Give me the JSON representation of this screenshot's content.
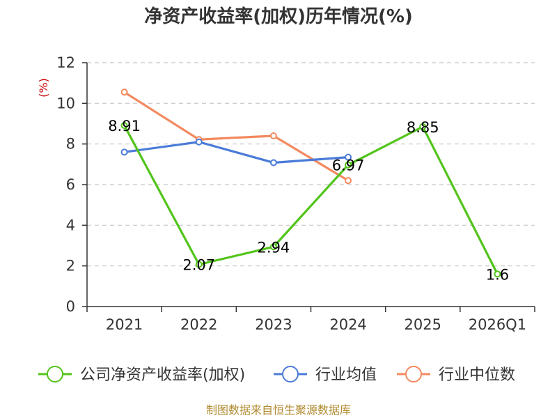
{
  "chart_data": {
    "type": "line",
    "title": "净资产收益率(加权)历年情况(%)",
    "ylabel": "(%)",
    "xlabel": "",
    "ylim": [
      0,
      12
    ],
    "yticks": [
      0,
      2,
      4,
      6,
      8,
      10,
      12
    ],
    "grid": true,
    "legend_position": "bottom",
    "categories": [
      "2021",
      "2022",
      "2023",
      "2024",
      "2025",
      "2026Q1"
    ],
    "series": [
      {
        "name": "公司净资产收益率(加权)",
        "color": "#52c41a",
        "values": [
          8.91,
          2.07,
          2.94,
          6.97,
          8.85,
          1.6
        ],
        "labels": [
          "8.91",
          "2.07",
          "2.94",
          "6.97",
          "8.85",
          "1.6"
        ]
      },
      {
        "name": "行业均值",
        "color": "#4a7bd8",
        "values": [
          7.6,
          8.1,
          7.08,
          7.35,
          null,
          null
        ]
      },
      {
        "name": "行业中位数",
        "color": "#f4895f",
        "values": [
          10.55,
          8.22,
          8.4,
          6.2,
          null,
          null
        ]
      }
    ],
    "source": "制图数据来自恒生聚源数据库"
  }
}
